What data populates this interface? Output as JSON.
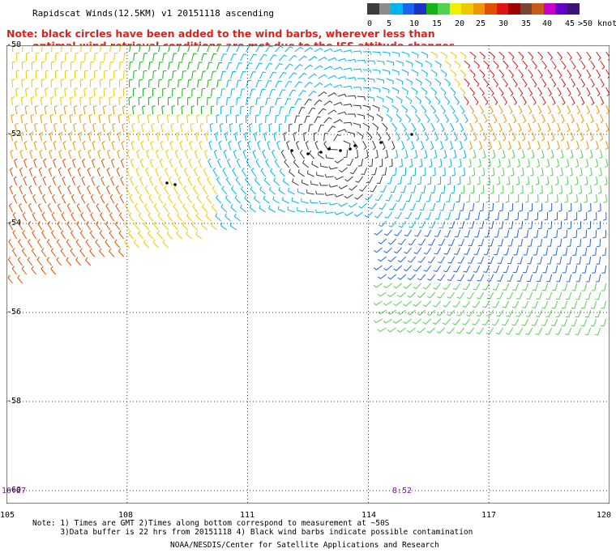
{
  "title": "Rapidscat Winds(12.5KM) v1 20151118 ascending",
  "note": {
    "line1": "Note: black circles have been added to the wind barbs, wherever less than",
    "line2": "optimal wind retrieval conditions are met due to the ISS attitude changes."
  },
  "color_scale": {
    "colors": [
      "#3c3c3c",
      "#8c8c8c",
      "#00b4f0",
      "#1e64f0",
      "#1e32c8",
      "#14b414",
      "#50d250",
      "#f0f000",
      "#f0c800",
      "#f09600",
      "#e05000",
      "#e01414",
      "#a00000",
      "#7a4632",
      "#c85a1e",
      "#c800c8",
      "#6400c8",
      "#3c1478"
    ],
    "labels": [
      "0",
      "5",
      "10",
      "15",
      "20",
      "25",
      "30",
      "35",
      "40",
      "45",
      ">50 knots"
    ]
  },
  "map": {
    "lat_labels": [
      "-50",
      "-52",
      "-54",
      "-56",
      "-58",
      "-60"
    ],
    "lon_labels": [
      "105",
      "108",
      "111",
      "114",
      "117",
      "120"
    ],
    "time_labels": [
      "10:27",
      "8:52"
    ]
  },
  "footnote": "Note: 1) Times are GMT 2)Times along bottom correspond to measurement at ~50S\n      3)Data buffer is 22 hrs from 20151118 4) Black wind barbs indicate possible contamination",
  "credit": "NOAA/NESDIS/Center for Satellite Applications and Research"
}
